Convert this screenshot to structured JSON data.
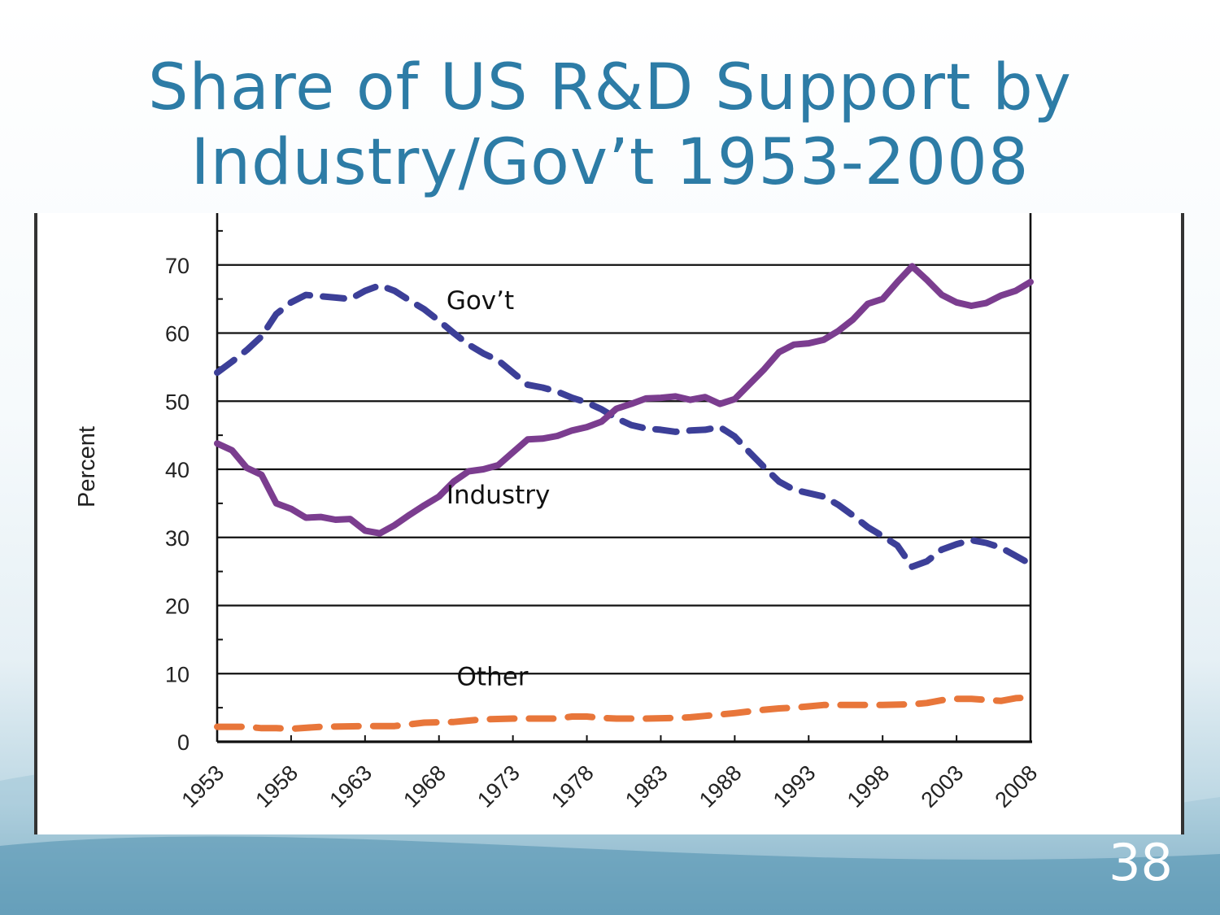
{
  "slide": {
    "title_line1": "Share of US R&D Support by",
    "title_line2": "Industry/Gov’t 1953-2008",
    "page_number": "38"
  },
  "colors": {
    "title": "#2d7ca6",
    "govt": "#3c3f98",
    "industry": "#7b3d8f",
    "other": "#e8763a"
  },
  "chart_data": {
    "type": "line",
    "title": "",
    "xlabel": "",
    "ylabel": "Percent",
    "xlim": [
      1953,
      2008
    ],
    "ylim": [
      0,
      80
    ],
    "y_ticks": [
      0,
      10,
      20,
      30,
      40,
      50,
      60,
      70
    ],
    "x_ticks": [
      1953,
      1958,
      1963,
      1968,
      1973,
      1978,
      1983,
      1988,
      1993,
      1998,
      2003,
      2008
    ],
    "grid": "horizontal",
    "series": [
      {
        "name": "Gov’t",
        "style": "dashed",
        "color": "#3c3f98",
        "label_year": 1968.5,
        "label_value": 63.5,
        "points": [
          [
            1953,
            54.2
          ],
          [
            1954,
            55.8
          ],
          [
            1955,
            57.5
          ],
          [
            1956,
            59.5
          ],
          [
            1957,
            62.8
          ],
          [
            1958,
            64.5
          ],
          [
            1959,
            65.6
          ],
          [
            1960,
            65.4
          ],
          [
            1961,
            65.2
          ],
          [
            1962,
            65.0
          ],
          [
            1963,
            66.2
          ],
          [
            1964,
            67.0
          ],
          [
            1965,
            66.2
          ],
          [
            1966,
            64.8
          ],
          [
            1967,
            63.5
          ],
          [
            1968,
            61.8
          ],
          [
            1969,
            60.0
          ],
          [
            1970,
            58.3
          ],
          [
            1971,
            57.0
          ],
          [
            1972,
            56.0
          ],
          [
            1973,
            54.2
          ],
          [
            1974,
            52.4
          ],
          [
            1975,
            52.0
          ],
          [
            1976,
            51.4
          ],
          [
            1977,
            50.5
          ],
          [
            1978,
            49.8
          ],
          [
            1979,
            48.8
          ],
          [
            1980,
            47.5
          ],
          [
            1981,
            46.5
          ],
          [
            1982,
            46.0
          ],
          [
            1983,
            45.8
          ],
          [
            1984,
            45.5
          ],
          [
            1985,
            45.7
          ],
          [
            1986,
            45.8
          ],
          [
            1987,
            46.2
          ],
          [
            1988,
            44.8
          ],
          [
            1989,
            42.5
          ],
          [
            1990,
            40.3
          ],
          [
            1991,
            38.2
          ],
          [
            1992,
            37.0
          ],
          [
            1993,
            36.5
          ],
          [
            1994,
            36.0
          ],
          [
            1995,
            34.8
          ],
          [
            1996,
            33.2
          ],
          [
            1997,
            31.5
          ],
          [
            1998,
            30.2
          ],
          [
            1999,
            28.8
          ],
          [
            2000,
            25.7
          ],
          [
            2001,
            26.5
          ],
          [
            2002,
            28.2
          ],
          [
            2003,
            29.0
          ],
          [
            2004,
            29.6
          ],
          [
            2005,
            29.2
          ],
          [
            2006,
            28.5
          ],
          [
            2007,
            27.3
          ],
          [
            2008,
            26.1
          ]
        ]
      },
      {
        "name": "Industry",
        "style": "solid",
        "color": "#7b3d8f",
        "label_year": 1968.5,
        "label_value": 35,
        "points": [
          [
            1953,
            43.8
          ],
          [
            1954,
            42.8
          ],
          [
            1955,
            40.2
          ],
          [
            1956,
            39.2
          ],
          [
            1957,
            35.0
          ],
          [
            1958,
            34.2
          ],
          [
            1959,
            32.9
          ],
          [
            1960,
            33.0
          ],
          [
            1961,
            32.6
          ],
          [
            1962,
            32.7
          ],
          [
            1963,
            31.0
          ],
          [
            1964,
            30.6
          ],
          [
            1965,
            31.8
          ],
          [
            1966,
            33.3
          ],
          [
            1967,
            34.7
          ],
          [
            1968,
            36.0
          ],
          [
            1969,
            38.2
          ],
          [
            1970,
            39.7
          ],
          [
            1971,
            40.0
          ],
          [
            1972,
            40.6
          ],
          [
            1973,
            42.5
          ],
          [
            1974,
            44.4
          ],
          [
            1975,
            44.5
          ],
          [
            1976,
            44.9
          ],
          [
            1977,
            45.7
          ],
          [
            1978,
            46.2
          ],
          [
            1979,
            47.0
          ],
          [
            1980,
            48.9
          ],
          [
            1981,
            49.6
          ],
          [
            1982,
            50.4
          ],
          [
            1983,
            50.5
          ],
          [
            1984,
            50.7
          ],
          [
            1985,
            50.2
          ],
          [
            1986,
            50.6
          ],
          [
            1987,
            49.6
          ],
          [
            1988,
            50.3
          ],
          [
            1989,
            52.5
          ],
          [
            1990,
            54.7
          ],
          [
            1991,
            57.2
          ],
          [
            1992,
            58.3
          ],
          [
            1993,
            58.5
          ],
          [
            1994,
            59.0
          ],
          [
            1995,
            60.3
          ],
          [
            1996,
            62.0
          ],
          [
            1997,
            64.3
          ],
          [
            1998,
            65.0
          ],
          [
            1999,
            67.5
          ],
          [
            2000,
            69.8
          ],
          [
            2001,
            67.8
          ],
          [
            2002,
            65.6
          ],
          [
            2003,
            64.5
          ],
          [
            2004,
            64.0
          ],
          [
            2005,
            64.4
          ],
          [
            2006,
            65.5
          ],
          [
            2007,
            66.2
          ],
          [
            2008,
            67.5
          ]
        ]
      },
      {
        "name": "Other",
        "style": "dashed",
        "color": "#e8763a",
        "label_year": 1969.2,
        "label_value": 8.3,
        "points": [
          [
            1953,
            2.2
          ],
          [
            1955,
            2.2
          ],
          [
            1956,
            2.0
          ],
          [
            1957,
            2.0
          ],
          [
            1958,
            1.9
          ],
          [
            1960,
            2.2
          ],
          [
            1963,
            2.3
          ],
          [
            1965,
            2.3
          ],
          [
            1967,
            2.8
          ],
          [
            1969,
            2.9
          ],
          [
            1970,
            3.1
          ],
          [
            1971,
            3.3
          ],
          [
            1973,
            3.4
          ],
          [
            1975,
            3.4
          ],
          [
            1976,
            3.4
          ],
          [
            1977,
            3.7
          ],
          [
            1978,
            3.7
          ],
          [
            1979,
            3.5
          ],
          [
            1980,
            3.4
          ],
          [
            1982,
            3.4
          ],
          [
            1984,
            3.5
          ],
          [
            1985,
            3.6
          ],
          [
            1986,
            3.8
          ],
          [
            1988,
            4.2
          ],
          [
            1990,
            4.7
          ],
          [
            1991,
            4.9
          ],
          [
            1992,
            5.0
          ],
          [
            1993,
            5.2
          ],
          [
            1994,
            5.4
          ],
          [
            1996,
            5.4
          ],
          [
            1998,
            5.4
          ],
          [
            2000,
            5.5
          ],
          [
            2001,
            5.7
          ],
          [
            2002,
            6.1
          ],
          [
            2003,
            6.3
          ],
          [
            2004,
            6.3
          ],
          [
            2006,
            6.0
          ],
          [
            2007,
            6.4
          ],
          [
            2008,
            6.5
          ]
        ]
      }
    ]
  }
}
